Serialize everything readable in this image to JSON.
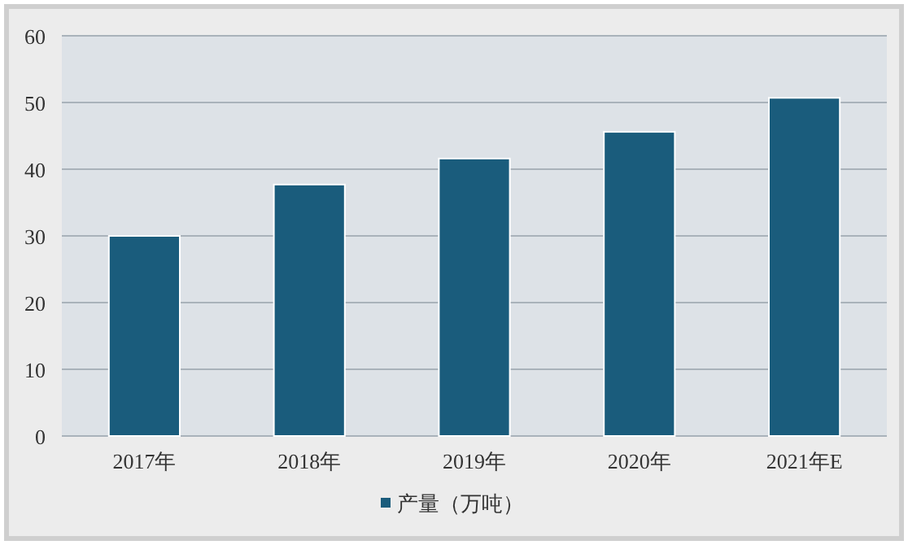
{
  "chart_data": {
    "type": "bar",
    "categories": [
      "2017年",
      "2018年",
      "2019年",
      "2020年",
      "2021年E"
    ],
    "series": [
      {
        "name": "产量（万吨）",
        "color": "#1a5c7c",
        "values": [
          30,
          37.7,
          41.6,
          45.6,
          50.7
        ]
      }
    ],
    "ylim": [
      0,
      60
    ],
    "yticks": [
      0,
      10,
      20,
      30,
      40,
      50,
      60
    ],
    "grid": "y",
    "legend": "bottom"
  }
}
